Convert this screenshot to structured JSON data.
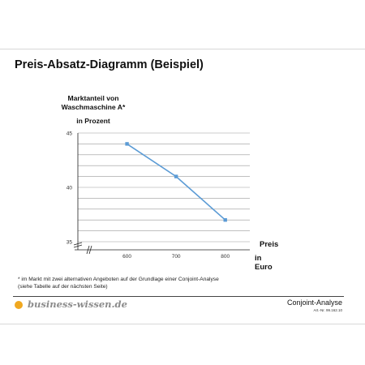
{
  "header": {
    "title": "Preis-Absatz-Diagramm (Beispiel)"
  },
  "chart_data": {
    "type": "line",
    "ylabel_lines": [
      "Marktanteil von",
      "Waschmaschine A*",
      "in Prozent"
    ],
    "xlabel_lines": [
      "Preis",
      "in Euro"
    ],
    "x": [
      600,
      700,
      800
    ],
    "series": [
      {
        "values": [
          44,
          41,
          37
        ]
      }
    ],
    "x_ticks": [
      "600",
      "700",
      "800"
    ],
    "y_ticks": [
      "45",
      "40",
      "35"
    ],
    "ylim": [
      35,
      45
    ],
    "xlim": [
      500,
      850
    ],
    "grid": true,
    "axis_break": true,
    "line_color": "#5b9bd5",
    "grid_color": "#9a9a9a"
  },
  "footnote": {
    "line1": "* im Markt mit zwei alternativen Angeboten auf der Grundlage einer Conjoint-Analyse",
    "line2": "(siehe Tabelle auf der nächsten Seite)"
  },
  "footer": {
    "logo_text": "business-wissen.de",
    "logo_dot_color": "#f0a820",
    "doc_title": "Conjoint-Analyse",
    "art_nr": "Art.-Nr. 99.162.10"
  }
}
